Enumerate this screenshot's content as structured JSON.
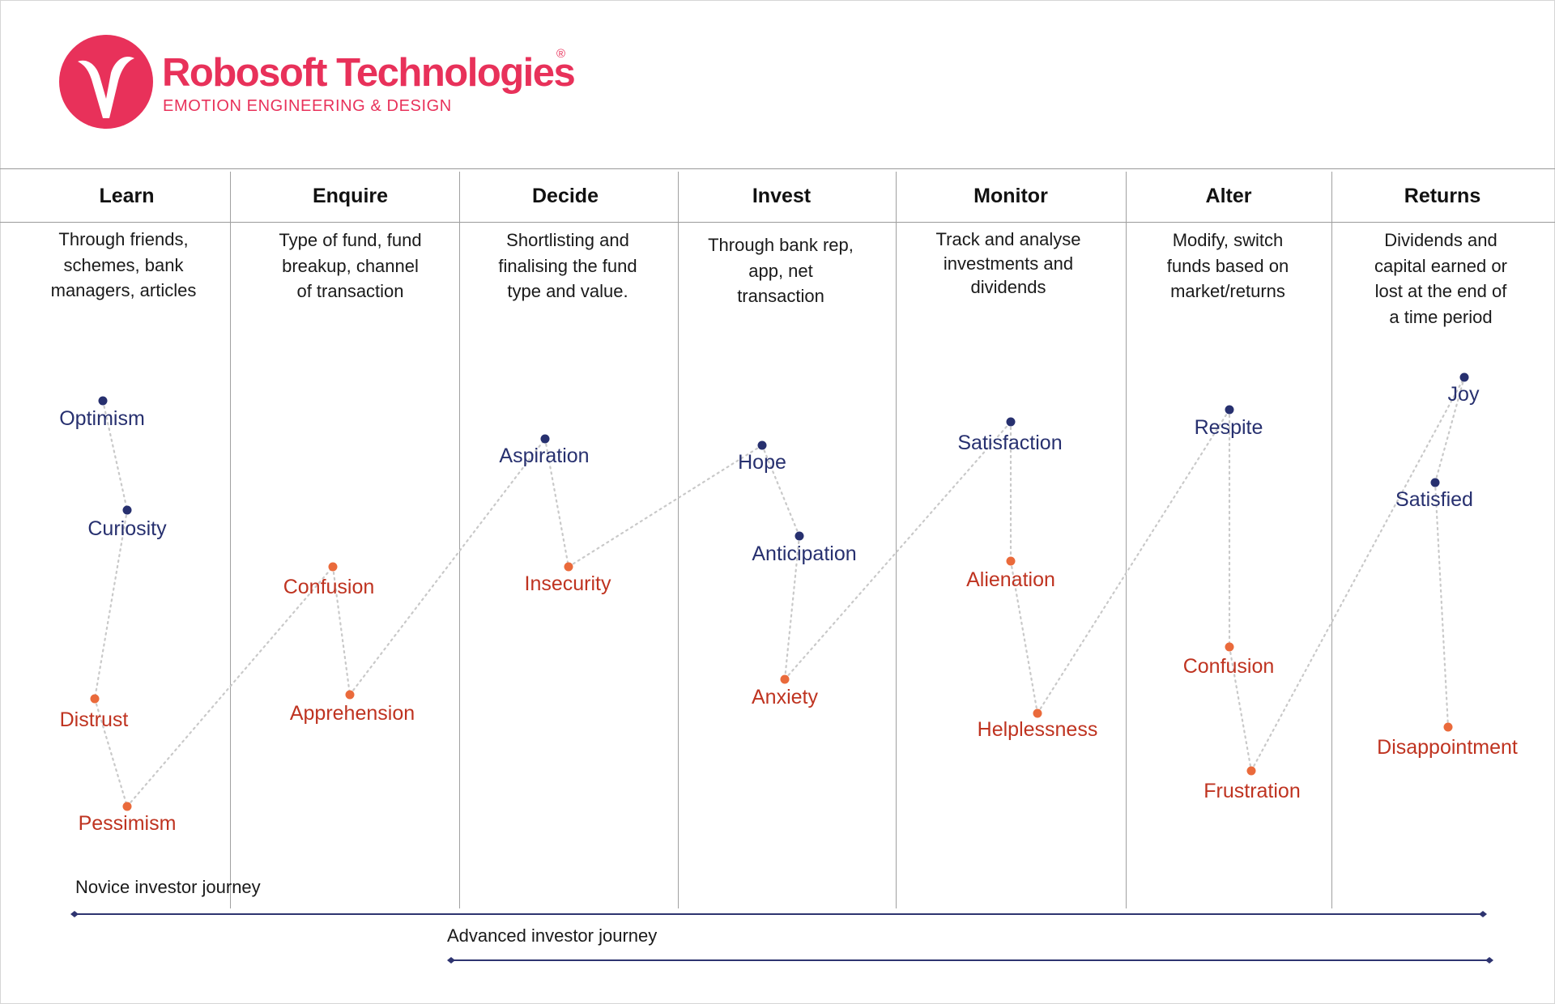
{
  "brand": {
    "name": "Robosoft Technologies",
    "registered": "®",
    "tagline": "EMOTION ENGINEERING & DESIGN",
    "color": "#e8315a"
  },
  "stages": [
    {
      "title": "Learn",
      "description": "Through friends,\nschemes, bank\nmanagers, articles"
    },
    {
      "title": "Enquire",
      "description": "Type of fund, fund\nbreakup, channel\nof transaction"
    },
    {
      "title": "Decide",
      "description": "Shortlisting and\nfinalising the fund\ntype and value."
    },
    {
      "title": "Invest",
      "description": "Through bank rep,\napp, net\ntransaction"
    },
    {
      "title": "Monitor",
      "description": "Track and analyse\ninvestments and\ndividends"
    },
    {
      "title": "Alter",
      "description": "Modify, switch\nfunds based on\nmarket/returns"
    },
    {
      "title": "Returns",
      "description": "Dividends and\ncapital earned or\nlost at the end of\na time period"
    }
  ],
  "colors": {
    "positive": "#27306f",
    "negative": "#bf3320",
    "negative_dot": "#ea6a3b",
    "connector": "#c9c9c9",
    "journey_line": "#2e3470"
  },
  "emotions": [
    {
      "label": "Optimism",
      "type": "positive"
    },
    {
      "label": "Curiosity",
      "type": "positive"
    },
    {
      "label": "Distrust",
      "type": "negative"
    },
    {
      "label": "Pessimism",
      "type": "negative"
    },
    {
      "label": "Confusion",
      "type": "negative"
    },
    {
      "label": "Apprehension",
      "type": "negative"
    },
    {
      "label": "Aspiration",
      "type": "positive"
    },
    {
      "label": "Insecurity",
      "type": "negative"
    },
    {
      "label": "Hope",
      "type": "positive"
    },
    {
      "label": "Anticipation",
      "type": "positive"
    },
    {
      "label": "Anxiety",
      "type": "negative"
    },
    {
      "label": "Satisfaction",
      "type": "positive"
    },
    {
      "label": "Alienation",
      "type": "negative"
    },
    {
      "label": "Helplessness",
      "type": "negative"
    },
    {
      "label": "Respite",
      "type": "positive"
    },
    {
      "label": "Confusion",
      "type": "negative"
    },
    {
      "label": "Frustration",
      "type": "negative"
    },
    {
      "label": "Joy",
      "type": "positive"
    },
    {
      "label": "Satisfied",
      "type": "positive"
    },
    {
      "label": "Disappointment",
      "type": "negative"
    }
  ],
  "journeys": [
    {
      "label": "Novice investor journey"
    },
    {
      "label": "Advanced investor journey"
    }
  ]
}
